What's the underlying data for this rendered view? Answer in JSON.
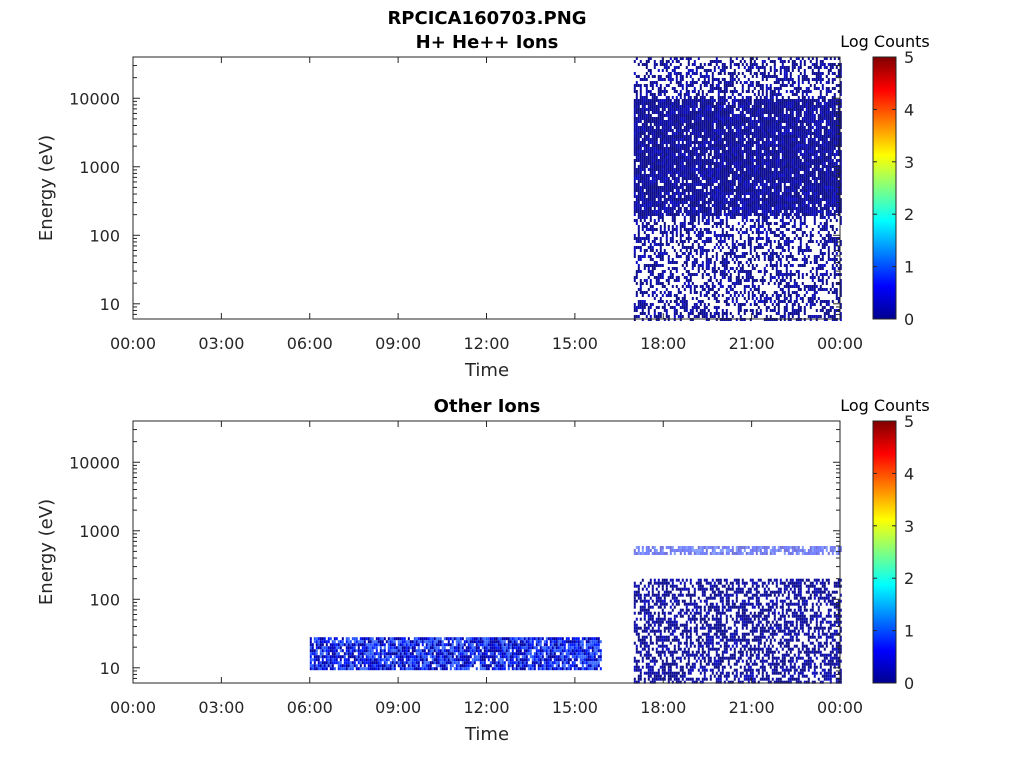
{
  "figure_title": "RPCICA160703.PNG",
  "chart_data": [
    {
      "type": "heatmap",
      "title": "H+ He++ Ions",
      "xlabel": "Time",
      "ylabel": "Energy (eV)",
      "x_ticks": [
        "00:00",
        "03:00",
        "06:00",
        "09:00",
        "12:00",
        "15:00",
        "18:00",
        "21:00",
        "00:00"
      ],
      "y_ticks": [
        "10",
        "100",
        "1000",
        "10000"
      ],
      "y_scale": "log",
      "ylim": [
        6,
        40000
      ],
      "xlim_hours": [
        0,
        24
      ],
      "colorbar": {
        "label": "Log Counts",
        "ticks": [
          "0",
          "1",
          "2",
          "3",
          "4",
          "5"
        ],
        "range": [
          0,
          5
        ],
        "colormap": "jet"
      },
      "regions": [
        {
          "t_start_h": 17.0,
          "t_end_h": 24.0,
          "e_min": 6,
          "e_max": 40000,
          "core_e_min": 200,
          "core_e_max": 10000,
          "level": "low",
          "note_gap_h": 22.4
        }
      ]
    },
    {
      "type": "heatmap",
      "title": "Other Ions",
      "xlabel": "Time",
      "ylabel": "Energy (eV)",
      "x_ticks": [
        "00:00",
        "03:00",
        "06:00",
        "09:00",
        "12:00",
        "15:00",
        "18:00",
        "21:00",
        "00:00"
      ],
      "y_ticks": [
        "10",
        "100",
        "1000",
        "10000"
      ],
      "y_scale": "log",
      "ylim": [
        6,
        40000
      ],
      "xlim_hours": [
        0,
        24
      ],
      "colorbar": {
        "label": "Log Counts",
        "ticks": [
          "0",
          "1",
          "2",
          "3",
          "4",
          "5"
        ],
        "range": [
          0,
          5
        ],
        "colormap": "jet"
      },
      "regions": [
        {
          "t_start_h": 6.0,
          "t_end_h": 15.9,
          "e_min": 10,
          "e_max": 28,
          "level": "medium"
        },
        {
          "t_start_h": 17.0,
          "t_end_h": 24.0,
          "e_min": 6,
          "e_max": 200,
          "level": "low"
        },
        {
          "t_start_h": 17.0,
          "t_end_h": 24.0,
          "e_min": 480,
          "e_max": 600,
          "level": "faint"
        }
      ]
    }
  ]
}
